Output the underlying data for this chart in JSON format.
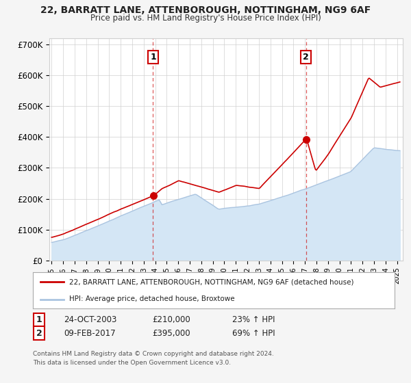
{
  "title": "22, BARRATT LANE, ATTENBOROUGH, NOTTINGHAM, NG9 6AF",
  "subtitle": "Price paid vs. HM Land Registry's House Price Index (HPI)",
  "ylabel_ticks": [
    "£0",
    "£100K",
    "£200K",
    "£300K",
    "£400K",
    "£500K",
    "£600K",
    "£700K"
  ],
  "ytick_values": [
    0,
    100000,
    200000,
    300000,
    400000,
    500000,
    600000,
    700000
  ],
  "ylim": [
    0,
    720000
  ],
  "xlim_start": 1994.8,
  "xlim_end": 2025.5,
  "sale1_date": 2003.81,
  "sale1_price": 210000,
  "sale2_date": 2017.1,
  "sale2_price": 395000,
  "hpi_color": "#aac4e0",
  "hpi_fill_color": "#d4e6f5",
  "price_color": "#cc0000",
  "legend_label1": "22, BARRATT LANE, ATTENBOROUGH, NOTTINGHAM, NG9 6AF (detached house)",
  "legend_label2": "HPI: Average price, detached house, Broxtowe",
  "row1_label": "1",
  "row1_date": "24-OCT-2003",
  "row1_price": "£210,000",
  "row1_pct": "23% ↑ HPI",
  "row2_label": "2",
  "row2_date": "09-FEB-2017",
  "row2_price": "£395,000",
  "row2_pct": "69% ↑ HPI",
  "footer1": "Contains HM Land Registry data © Crown copyright and database right 2024.",
  "footer2": "This data is licensed under the Open Government Licence v3.0.",
  "bg_color": "#f5f5f5",
  "plot_bg": "#ffffff",
  "grid_color": "#d0d0d0"
}
